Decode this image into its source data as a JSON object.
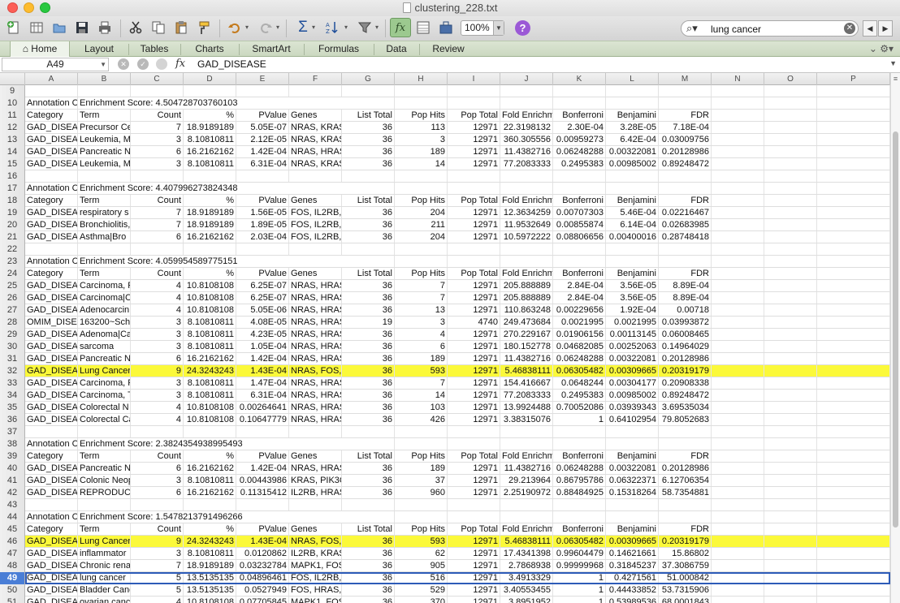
{
  "window": {
    "title": "clustering_228.txt"
  },
  "toolbar": {
    "icons": [
      "new-icon",
      "gallery-icon",
      "open-icon",
      "save-icon",
      "print-icon",
      "cut-icon",
      "copy-icon",
      "paste-icon",
      "format-painter-icon",
      "undo-icon",
      "redo-icon",
      "autosum-icon",
      "sort-icon",
      "filter-icon",
      "formula-builder-icon",
      "show-sheets-icon",
      "toolbox-icon",
      "zoom-select",
      "help-icon"
    ],
    "zoom": "100%",
    "search_value": "lung cancer"
  },
  "ribbon": {
    "tabs": [
      "Home",
      "Layout",
      "Tables",
      "Charts",
      "SmartArt",
      "Formulas",
      "Data",
      "Review"
    ]
  },
  "formula_bar": {
    "name_box": "A49",
    "fx": "fx",
    "content": "GAD_DISEASE"
  },
  "columns": [
    "A",
    "B",
    "C",
    "D",
    "E",
    "F",
    "G",
    "H",
    "I",
    "J",
    "K",
    "L",
    "M",
    "N",
    "O",
    "P"
  ],
  "rows": [
    {
      "n": "9",
      "cells": [
        "",
        "",
        "",
        "",
        "",
        "",
        "",
        "",
        "",
        "",
        "",
        "",
        ""
      ]
    },
    {
      "n": "10",
      "cells": [
        "Annotation C",
        "Enrichment Score: 4.504728703760103",
        "",
        "",
        "",
        "",
        "",
        "",
        "",
        "",
        "",
        "",
        ""
      ]
    },
    {
      "n": "11",
      "cells": [
        "Category",
        "Term",
        "Count",
        "%",
        "PValue",
        "Genes",
        "List Total",
        "Pop Hits",
        "Pop Total",
        "Fold Enrichm",
        "Bonferroni",
        "Benjamini",
        "FDR"
      ]
    },
    {
      "n": "12",
      "cells": [
        "GAD_DISEAS",
        "Precursor Ce",
        "7",
        "18.9189189",
        "5.05E-07",
        "NRAS, KRAS,",
        "36",
        "113",
        "12971",
        "22.3198132",
        "2.30E-04",
        "3.28E-05",
        "7.18E-04"
      ]
    },
    {
      "n": "13",
      "cells": [
        "GAD_DISEAS",
        "Leukemia, M",
        "3",
        "8.10810811",
        "2.12E-05",
        "NRAS, KRAS,",
        "36",
        "3",
        "12971",
        "360.305556",
        "0.00959273",
        "6.42E-04",
        "0.03009756"
      ]
    },
    {
      "n": "14",
      "cells": [
        "GAD_DISEAS",
        "Pancreatic N",
        "6",
        "16.2162162",
        "1.42E-04",
        "NRAS, HRAS,",
        "36",
        "189",
        "12971",
        "11.4382716",
        "0.06248288",
        "0.00322081",
        "0.20128986"
      ]
    },
    {
      "n": "15",
      "cells": [
        "GAD_DISEAS",
        "Leukemia, M",
        "3",
        "8.10810811",
        "6.31E-04",
        "NRAS, KRAS,",
        "36",
        "14",
        "12971",
        "77.2083333",
        "0.2495383",
        "0.00985002",
        "0.89248472"
      ]
    },
    {
      "n": "16",
      "cells": [
        "",
        "",
        "",
        "",
        "",
        "",
        "",
        "",
        "",
        "",
        "",
        "",
        ""
      ]
    },
    {
      "n": "17",
      "cells": [
        "Annotation C",
        "Enrichment Score: 4.407996273824348",
        "",
        "",
        "",
        "",
        "",
        "",
        "",
        "",
        "",
        "",
        ""
      ]
    },
    {
      "n": "18",
      "cells": [
        "Category",
        "Term",
        "Count",
        "%",
        "PValue",
        "Genes",
        "List Total",
        "Pop Hits",
        "Pop Total",
        "Fold Enrichm",
        "Bonferroni",
        "Benjamini",
        "FDR"
      ]
    },
    {
      "n": "19",
      "cells": [
        "GAD_DISEAS",
        "respiratory s",
        "7",
        "18.9189189",
        "1.56E-05",
        "FOS, IL2RB, S",
        "36",
        "204",
        "12971",
        "12.3634259",
        "0.00707303",
        "5.46E-04",
        "0.02216467"
      ]
    },
    {
      "n": "20",
      "cells": [
        "GAD_DISEAS",
        "Bronchiolitis,",
        "7",
        "18.9189189",
        "1.89E-05",
        "FOS, IL2RB, S",
        "36",
        "211",
        "12971",
        "11.9532649",
        "0.00855874",
        "6.14E-04",
        "0.02683985"
      ]
    },
    {
      "n": "21",
      "cells": [
        "GAD_DISEAS",
        "Asthma|Bro",
        "6",
        "16.2162162",
        "2.03E-04",
        "FOS, IL2RB, S",
        "36",
        "204",
        "12971",
        "10.5972222",
        "0.08806656",
        "0.00400016",
        "0.28748418"
      ]
    },
    {
      "n": "22",
      "cells": [
        "",
        "",
        "",
        "",
        "",
        "",
        "",
        "",
        "",
        "",
        "",
        "",
        ""
      ]
    },
    {
      "n": "23",
      "cells": [
        "Annotation C",
        "Enrichment Score: 4.059954589775151",
        "",
        "",
        "",
        "",
        "",
        "",
        "",
        "",
        "",
        "",
        ""
      ]
    },
    {
      "n": "24",
      "cells": [
        "Category",
        "Term",
        "Count",
        "%",
        "PValue",
        "Genes",
        "List Total",
        "Pop Hits",
        "Pop Total",
        "Fold Enrichm",
        "Bonferroni",
        "Benjamini",
        "FDR"
      ]
    },
    {
      "n": "25",
      "cells": [
        "GAD_DISEAS",
        "Carcinoma, F",
        "4",
        "10.8108108",
        "6.25E-07",
        "NRAS, HRAS,",
        "36",
        "7",
        "12971",
        "205.888889",
        "2.84E-04",
        "3.56E-05",
        "8.89E-04"
      ]
    },
    {
      "n": "26",
      "cells": [
        "GAD_DISEAS",
        "Carcinoma|C",
        "4",
        "10.8108108",
        "6.25E-07",
        "NRAS, HRAS,",
        "36",
        "7",
        "12971",
        "205.888889",
        "2.84E-04",
        "3.56E-05",
        "8.89E-04"
      ]
    },
    {
      "n": "27",
      "cells": [
        "GAD_DISEAS",
        "Adenocarcin",
        "4",
        "10.8108108",
        "5.05E-06",
        "NRAS, HRAS,",
        "36",
        "13",
        "12971",
        "110.863248",
        "0.00229656",
        "1.92E-04",
        "0.00718"
      ]
    },
    {
      "n": "28",
      "cells": [
        "OMIM_DISEA",
        "163200~Schi",
        "3",
        "8.10810811",
        "4.08E-05",
        "NRAS, HRAS,",
        "19",
        "3",
        "4740",
        "249.473684",
        "0.0021995",
        "0.0021995",
        "0.03993872"
      ]
    },
    {
      "n": "29",
      "cells": [
        "GAD_DISEAS",
        "Adenoma|Ca",
        "3",
        "8.10810811",
        "4.23E-05",
        "NRAS, HRAS,",
        "36",
        "4",
        "12971",
        "270.229167",
        "0.01906156",
        "0.00113145",
        "0.06008465"
      ]
    },
    {
      "n": "30",
      "cells": [
        "GAD_DISEAS",
        "sarcoma",
        "3",
        "8.10810811",
        "1.05E-04",
        "NRAS, HRAS,",
        "36",
        "6",
        "12971",
        "180.152778",
        "0.04682085",
        "0.00252063",
        "0.14964029"
      ]
    },
    {
      "n": "31",
      "cells": [
        "GAD_DISEAS",
        "Pancreatic N",
        "6",
        "16.2162162",
        "1.42E-04",
        "NRAS, HRAS,",
        "36",
        "189",
        "12971",
        "11.4382716",
        "0.06248288",
        "0.00322081",
        "0.20128986"
      ]
    },
    {
      "n": "32",
      "hl": true,
      "cells": [
        "GAD_DISEAS",
        "Lung Cancer",
        "9",
        "24.3243243",
        "1.43E-04",
        "NRAS, FOS, II",
        "36",
        "593",
        "12971",
        "5.46838111",
        "0.06305482",
        "0.00309665",
        "0.20319179"
      ]
    },
    {
      "n": "33",
      "cells": [
        "GAD_DISEAS",
        "Carcinoma, F",
        "3",
        "8.10810811",
        "1.47E-04",
        "NRAS, HRAS,",
        "36",
        "7",
        "12971",
        "154.416667",
        "0.0648244",
        "0.00304177",
        "0.20908338"
      ]
    },
    {
      "n": "34",
      "cells": [
        "GAD_DISEAS",
        "Carcinoma, T",
        "3",
        "8.10810811",
        "6.31E-04",
        "NRAS, HRAS,",
        "36",
        "14",
        "12971",
        "77.2083333",
        "0.2495383",
        "0.00985002",
        "0.89248472"
      ]
    },
    {
      "n": "35",
      "cells": [
        "GAD_DISEAS",
        "Colorectal N",
        "4",
        "10.8108108",
        "0.00264641",
        "NRAS, HRAS,",
        "36",
        "103",
        "12971",
        "13.9924488",
        "0.70052086",
        "0.03939343",
        "3.69535034"
      ]
    },
    {
      "n": "36",
      "cells": [
        "GAD_DISEAS",
        "Colorectal Ca",
        "4",
        "10.8108108",
        "0.10647779",
        "NRAS, HRAS,",
        "36",
        "426",
        "12971",
        "3.38315076",
        "1",
        "0.64102954",
        "79.8052683"
      ]
    },
    {
      "n": "37",
      "cells": [
        "",
        "",
        "",
        "",
        "",
        "",
        "",
        "",
        "",
        "",
        "",
        "",
        ""
      ]
    },
    {
      "n": "38",
      "cells": [
        "Annotation C",
        "Enrichment Score: 2.3824354938995493",
        "",
        "",
        "",
        "",
        "",
        "",
        "",
        "",
        "",
        "",
        ""
      ]
    },
    {
      "n": "39",
      "cells": [
        "Category",
        "Term",
        "Count",
        "%",
        "PValue",
        "Genes",
        "List Total",
        "Pop Hits",
        "Pop Total",
        "Fold Enrichm",
        "Bonferroni",
        "Benjamini",
        "FDR"
      ]
    },
    {
      "n": "40",
      "cells": [
        "GAD_DISEAS",
        "Pancreatic N",
        "6",
        "16.2162162",
        "1.42E-04",
        "NRAS, HRAS,",
        "36",
        "189",
        "12971",
        "11.4382716",
        "0.06248288",
        "0.00322081",
        "0.20128986"
      ]
    },
    {
      "n": "41",
      "cells": [
        "GAD_DISEAS",
        "Colonic Neop",
        "3",
        "8.10810811",
        "0.00443986",
        "KRAS, PIK3CA",
        "36",
        "37",
        "12971",
        "29.213964",
        "0.86795786",
        "0.06322371",
        "6.12706354"
      ]
    },
    {
      "n": "42",
      "cells": [
        "GAD_DISEAS",
        "REPRODUCTI",
        "6",
        "16.2162162",
        "0.11315412",
        "IL2RB, HRAS,",
        "36",
        "960",
        "12971",
        "2.25190972",
        "0.88484925",
        "0.15318264",
        "58.7354881"
      ]
    },
    {
      "n": "43",
      "cells": [
        "",
        "",
        "",
        "",
        "",
        "",
        "",
        "",
        "",
        "",
        "",
        "",
        ""
      ]
    },
    {
      "n": "44",
      "cells": [
        "Annotation C",
        "Enrichment Score: 1.5478213791496266",
        "",
        "",
        "",
        "",
        "",
        "",
        "",
        "",
        "",
        "",
        ""
      ]
    },
    {
      "n": "45",
      "cells": [
        "Category",
        "Term",
        "Count",
        "%",
        "PValue",
        "Genes",
        "List Total",
        "Pop Hits",
        "Pop Total",
        "Fold Enrichm",
        "Bonferroni",
        "Benjamini",
        "FDR"
      ]
    },
    {
      "n": "46",
      "hl": true,
      "cells": [
        "GAD_DISEAS",
        "Lung Cancer",
        "9",
        "24.3243243",
        "1.43E-04",
        "NRAS, FOS, II",
        "36",
        "593",
        "12971",
        "5.46838111",
        "0.06305482",
        "0.00309665",
        "0.20319179"
      ]
    },
    {
      "n": "47",
      "cells": [
        "GAD_DISEAS",
        "inflammator",
        "3",
        "8.10810811",
        "0.0120862",
        "IL2RB, KRAS,",
        "36",
        "62",
        "12971",
        "17.4341398",
        "0.99604479",
        "0.14621661",
        "15.86802"
      ]
    },
    {
      "n": "48",
      "cells": [
        "GAD_DISEAS",
        "Chronic rena",
        "7",
        "18.9189189",
        "0.03232784",
        "MAPK1, FOS,",
        "36",
        "905",
        "12971",
        "2.7868938",
        "0.99999968",
        "0.31845237",
        "37.3086759"
      ]
    },
    {
      "n": "49",
      "sel": true,
      "cells": [
        "GAD_DISEAS",
        "lung cancer",
        "5",
        "13.5135135",
        "0.04896461",
        "FOS, IL2RB, K",
        "36",
        "516",
        "12971",
        "3.4913329",
        "1",
        "0.4271561",
        "51.000842"
      ]
    },
    {
      "n": "50",
      "cells": [
        "GAD_DISEAS",
        "Bladder Canc",
        "5",
        "13.5135135",
        "0.0527949",
        "FOS, HRAS, K",
        "36",
        "529",
        "12971",
        "3.40553455",
        "1",
        "0.44433852",
        "53.7315906"
      ]
    },
    {
      "n": "51",
      "cells": [
        "GAD_DISEAS",
        "ovarian canc",
        "4",
        "10.8108108",
        "0.07705845",
        "MAPK1, FOS,",
        "36",
        "370",
        "12971",
        "3.8951952",
        "1",
        "0.53989536",
        "68.0001843"
      ]
    }
  ]
}
